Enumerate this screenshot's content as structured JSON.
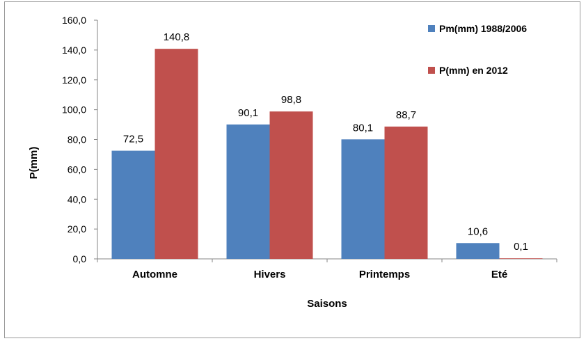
{
  "chart_data": {
    "type": "bar",
    "title": "",
    "xlabel": "Saisons",
    "ylabel": "P(mm)",
    "categories": [
      "Automne",
      "Hivers",
      "Printemps",
      "Eté"
    ],
    "series": [
      {
        "name": "Pm(mm) 1988/2006",
        "color": "#4f81bd",
        "values": [
          72.5,
          90.1,
          80.1,
          10.6
        ],
        "labels": [
          "72,5",
          "90,1",
          "80,1",
          "10,6"
        ]
      },
      {
        "name": "P(mm) en 2012",
        "color": "#c0504d",
        "values": [
          140.8,
          98.8,
          88.7,
          0.1
        ],
        "labels": [
          "140,8",
          "98,8",
          "88,7",
          "0,1"
        ]
      }
    ],
    "ylim": [
      0,
      160
    ],
    "yticks": [
      "0,0",
      "20,0",
      "40,0",
      "60,0",
      "80,0",
      "100,0",
      "120,0",
      "140,0",
      "160,0"
    ],
    "grid": false,
    "legend_position": "top-right"
  }
}
